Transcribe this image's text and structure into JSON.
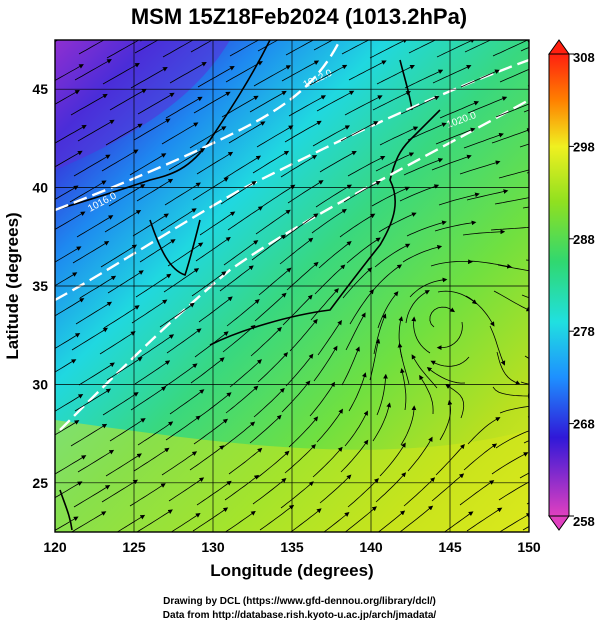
{
  "title": "MSM 15Z18Feb2024 (1013.2hPa)",
  "xaxis": {
    "label": "Longitude (degrees)",
    "range": [
      120,
      150
    ],
    "ticks": [
      "120",
      "125",
      "130",
      "135",
      "140",
      "145",
      "150"
    ]
  },
  "yaxis": {
    "label": "Latitude  (degrees)",
    "range": [
      22.5,
      47.5
    ],
    "ticks": [
      "25",
      "30",
      "35",
      "40",
      "45"
    ]
  },
  "colorbar": {
    "range": [
      258,
      308
    ],
    "ticks": [
      "258",
      "268",
      "278",
      "288",
      "298",
      "308"
    ],
    "colors": [
      "#e040c0",
      "#3018d8",
      "#1e90ff",
      "#20e0e0",
      "#30d870",
      "#90e020",
      "#f0f020",
      "#ff8000",
      "#ff2010"
    ]
  },
  "isobars": [
    {
      "label": "1012.0",
      "color": "#ffffff"
    },
    {
      "label": "1016.0",
      "color": "#ffffff"
    },
    {
      "label": "1020.0",
      "color": "#ffffff"
    }
  ],
  "credits": {
    "line1": "Drawing by DCL (https://www.gfd-dennou.org/library/dcl/)",
    "line2": "Data from http://database.rish.kyoto-u.ac.jp/arch/jmadata/"
  }
}
